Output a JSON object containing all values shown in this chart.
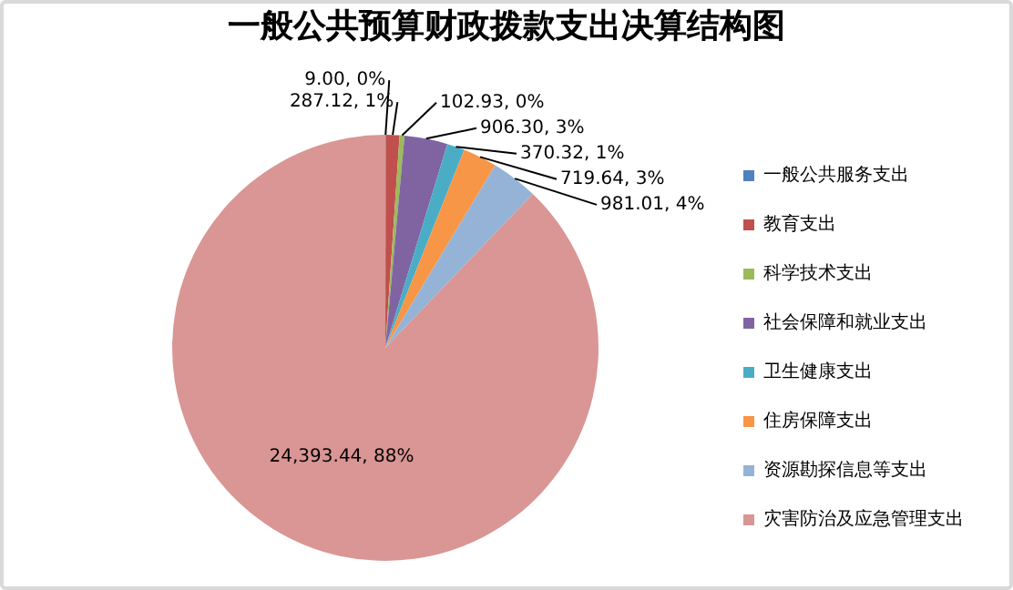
{
  "chart_data": {
    "type": "pie",
    "title": "一般公共预算财政拨款支出决算结构图",
    "categories": [
      "一般公共服务支出",
      "教育支出",
      "科学技术支出",
      "社会保障和就业支出",
      "卫生健康支出",
      "住房保障支出",
      "资源勘探信息等支出",
      "灾害防治及应急管理支出"
    ],
    "values": [
      9.0,
      287.12,
      102.93,
      906.3,
      370.32,
      719.64,
      981.01,
      24393.44
    ],
    "colors": [
      "#4f81bd",
      "#c0504d",
      "#9bbb59",
      "#8064a2",
      "#4bacc6",
      "#f79646",
      "#95b3d7",
      "#d99694"
    ],
    "value_labels": [
      "9.00, 0%",
      "287.12, 1%",
      "102.93, 0%",
      "906.30, 3%",
      "370.32, 1%",
      "719.64, 3%",
      "981.01, 4%",
      "24,393.44, 88%"
    ],
    "legend": "right"
  }
}
